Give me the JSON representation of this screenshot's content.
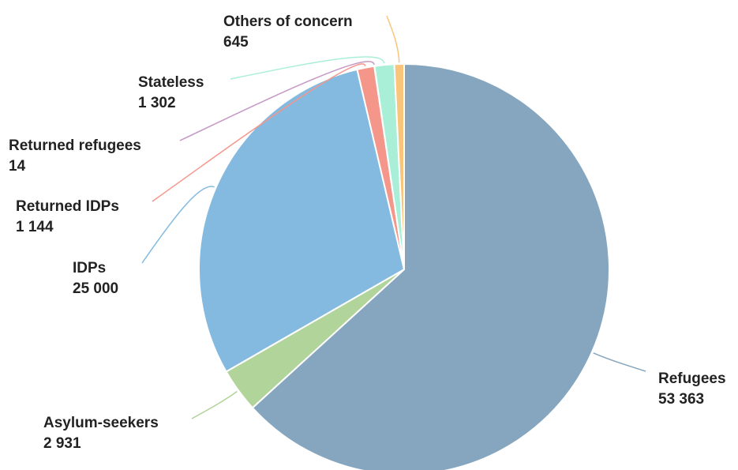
{
  "chart_data": {
    "type": "pie",
    "title": "",
    "legend": "none",
    "data_labels": "outside with leader lines",
    "slices": [
      {
        "label": "Refugees",
        "value": 53363,
        "value_label": "53 363",
        "color": "#85a6be"
      },
      {
        "label": "Asylum-seekers",
        "value": 2931,
        "value_label": "2 931",
        "color": "#b0d49a"
      },
      {
        "label": "IDPs",
        "value": 25000,
        "value_label": "25 000",
        "color": "#84badf"
      },
      {
        "label": "Returned IDPs",
        "value": 1144,
        "value_label": "1 144",
        "color": "#f5968b"
      },
      {
        "label": "Returned refugees",
        "value": 14,
        "value_label": "14",
        "color": "#c497c5"
      },
      {
        "label": "Stateless",
        "value": 1302,
        "value_label": "1 302",
        "color": "#a9efd7"
      },
      {
        "label": "Others of concern",
        "value": 645,
        "value_label": "645",
        "color": "#f9c57a"
      }
    ]
  }
}
